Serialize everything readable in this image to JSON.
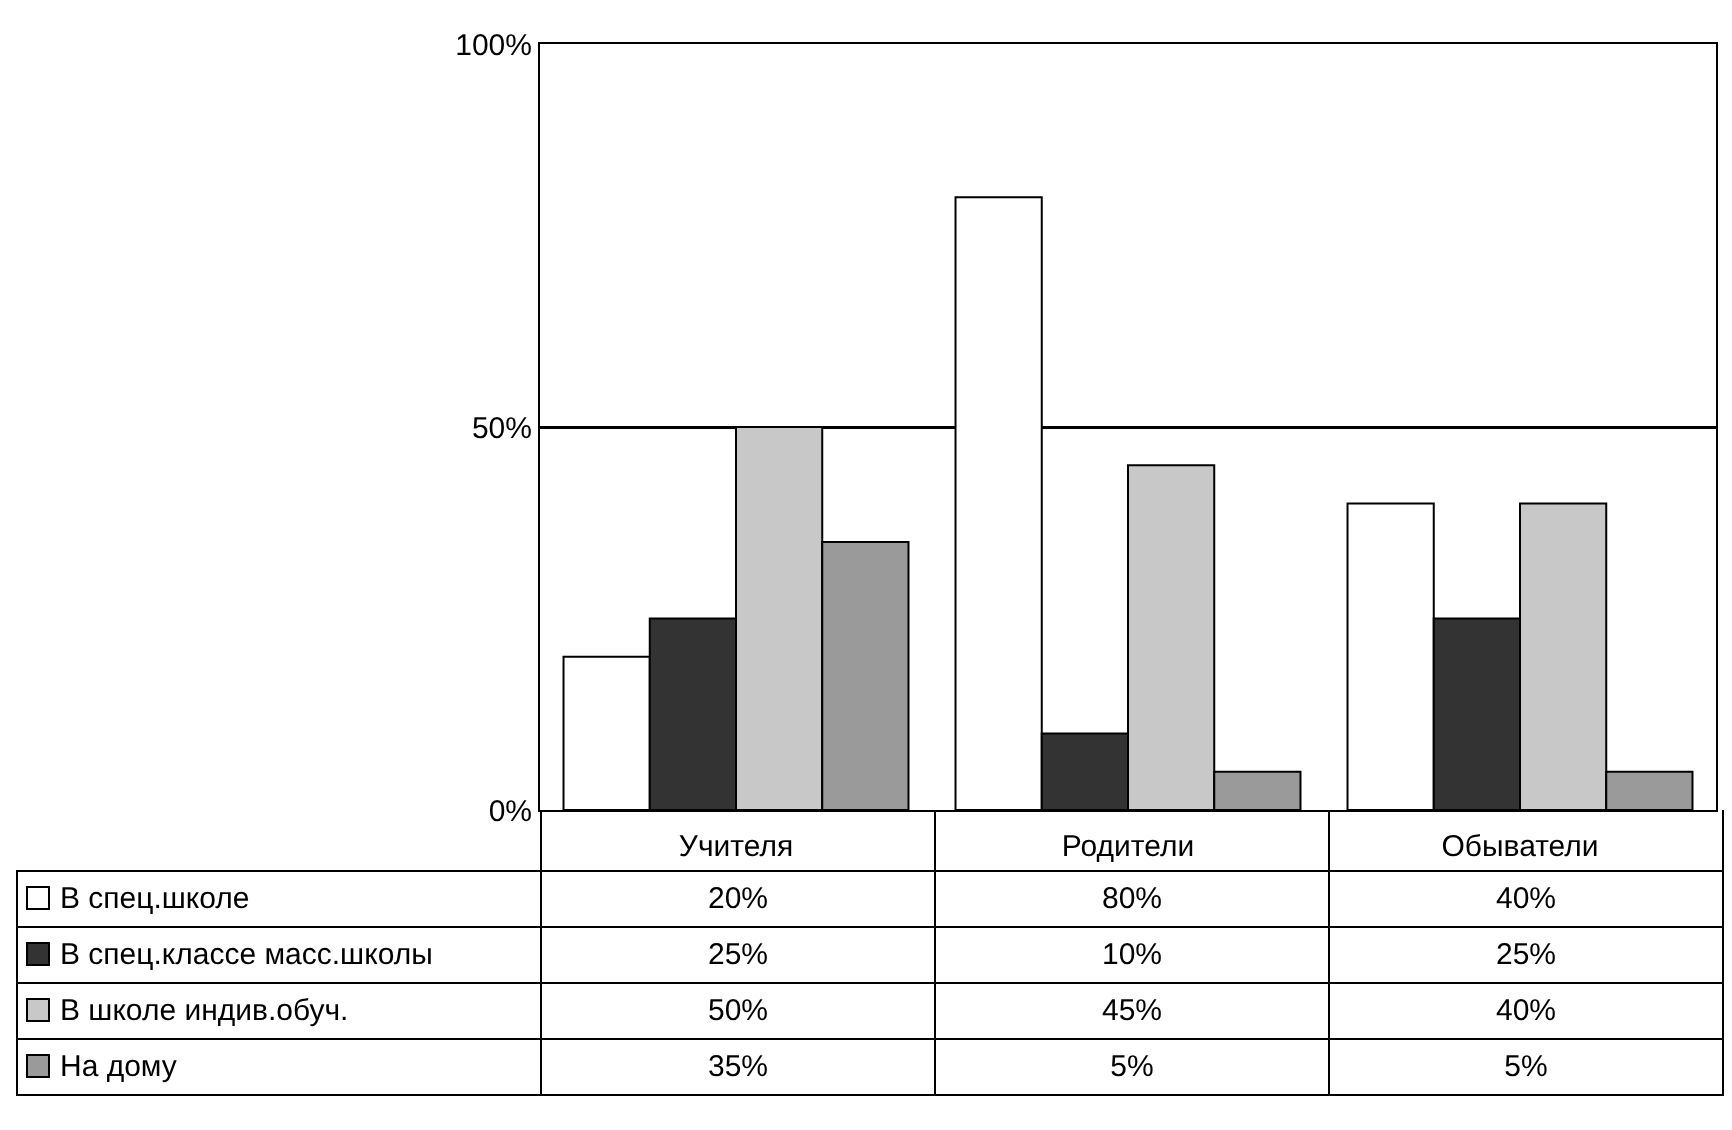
{
  "chart_data": {
    "type": "bar",
    "categories": [
      "Учителя",
      "Родители",
      "Обыватели"
    ],
    "series": [
      {
        "name": "В спец.школе",
        "color": "#ffffff",
        "values": [
          20,
          80,
          40
        ],
        "value_labels": [
          "20%",
          "80%",
          "40%"
        ]
      },
      {
        "name": "В спец.классе масс.школы",
        "color": "#333333",
        "values": [
          25,
          10,
          25
        ],
        "value_labels": [
          "25%",
          "10%",
          "25%"
        ]
      },
      {
        "name": "В школе индив.обуч.",
        "color": "#c8c8c8",
        "values": [
          50,
          45,
          40
        ],
        "value_labels": [
          "50%",
          "45%",
          "40%"
        ]
      },
      {
        "name": "На дому",
        "color": "#9a9a9a",
        "values": [
          35,
          5,
          5
        ],
        "value_labels": [
          "35%",
          "5%",
          "5%"
        ]
      }
    ],
    "ylim": [
      0,
      100
    ],
    "yticks": [
      {
        "value": 0,
        "label": "0%"
      },
      {
        "value": 50,
        "label": "50%"
      },
      {
        "value": 100,
        "label": "100%"
      }
    ],
    "grid": "y",
    "legend": "bottom left"
  }
}
